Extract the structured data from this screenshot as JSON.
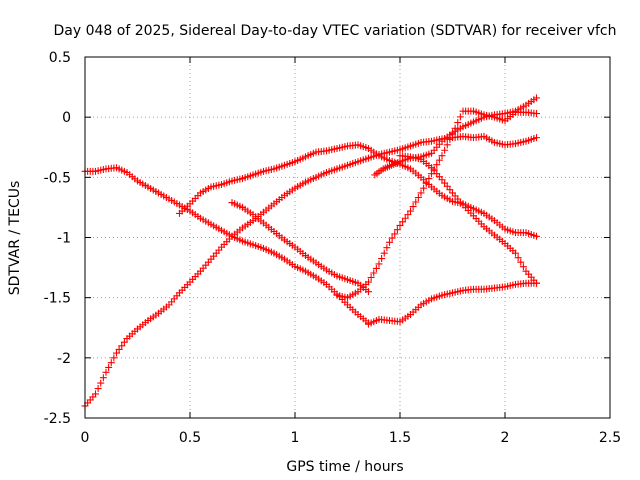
{
  "chart_data": {
    "type": "scatter",
    "title": "Day 048 of 2025, Sidereal Day-to-day VTEC variation (SDTVAR) for receiver vfch",
    "xlabel": "GPS time / hours",
    "ylabel": "SDTVAR / TECUs",
    "xlim": [
      0,
      2.5
    ],
    "ylim": [
      -2.5,
      0.5
    ],
    "xticks": [
      0,
      0.5,
      1,
      1.5,
      2,
      2.5
    ],
    "yticks": [
      -2.5,
      -2,
      -1.5,
      -1,
      -0.5,
      0,
      0.5
    ],
    "xtick_labels": [
      "0",
      "0.5",
      "1",
      "1.5",
      "2",
      "2.5"
    ],
    "ytick_labels": [
      "-2.5",
      "-2",
      "-1.5",
      "-1",
      "-0.5",
      "0",
      "0.5"
    ],
    "grid": true,
    "marker": "+",
    "series": [
      {
        "color": "#ff0000",
        "x": [
          0,
          0.05,
          0.1,
          0.15,
          0.2,
          0.25,
          0.3,
          0.35,
          0.4,
          0.45,
          0.5,
          0.55,
          0.6,
          0.65,
          0.7,
          0.75,
          0.8,
          0.85,
          0.9,
          0.95,
          1.0,
          1.05,
          1.1,
          1.15,
          1.2,
          1.25,
          1.3,
          1.35
        ],
        "y": [
          -0.45,
          -0.45,
          -0.43,
          -0.42,
          -0.46,
          -0.53,
          -0.58,
          -0.63,
          -0.68,
          -0.73,
          -0.78,
          -0.84,
          -0.89,
          -0.94,
          -0.99,
          -1.03,
          -1.06,
          -1.09,
          -1.13,
          -1.18,
          -1.24,
          -1.28,
          -1.33,
          -1.39,
          -1.47,
          -1.56,
          -1.64,
          -1.71
        ]
      },
      {
        "color": "#ff0000",
        "x": [
          1.35,
          1.4,
          1.45,
          1.5,
          1.55,
          1.6,
          1.65,
          1.7,
          1.75,
          1.8,
          1.85,
          1.9,
          1.95,
          2.0,
          2.05,
          2.1,
          2.15
        ],
        "y": [
          -1.72,
          -1.68,
          -1.69,
          -1.7,
          -1.64,
          -1.56,
          -1.51,
          -1.48,
          -1.46,
          -1.44,
          -1.43,
          -1.43,
          -1.42,
          -1.41,
          -1.39,
          -1.38,
          -1.38
        ]
      },
      {
        "color": "#ff0000",
        "x": [
          0,
          0.05,
          0.1,
          0.15,
          0.2,
          0.25,
          0.3,
          0.35,
          0.4,
          0.45,
          0.5,
          0.55,
          0.6,
          0.65,
          0.7,
          0.75,
          0.8,
          0.85,
          0.9,
          0.95,
          1.0,
          1.05,
          1.1,
          1.15,
          1.2
        ],
        "y": [
          -2.4,
          -2.3,
          -2.12,
          -1.96,
          -1.84,
          -1.76,
          -1.69,
          -1.63,
          -1.56,
          -1.46,
          -1.37,
          -1.28,
          -1.18,
          -1.08,
          -0.99,
          -0.92,
          -0.86,
          -0.79,
          -0.72,
          -0.65,
          -0.59,
          -0.54,
          -0.5,
          -0.46,
          -0.43
        ]
      },
      {
        "color": "#ff0000",
        "x": [
          1.2,
          1.25,
          1.3,
          1.35,
          1.4,
          1.45,
          1.5,
          1.55,
          1.6,
          1.65,
          1.7,
          1.75,
          1.8,
          1.85,
          1.9,
          1.95,
          2.0,
          2.05,
          2.1,
          2.15
        ],
        "y": [
          -0.43,
          -0.4,
          -0.37,
          -0.34,
          -0.31,
          -0.29,
          -0.27,
          -0.24,
          -0.21,
          -0.2,
          -0.18,
          -0.17,
          -0.16,
          -0.17,
          -0.16,
          -0.21,
          -0.23,
          -0.22,
          -0.2,
          -0.17
        ]
      },
      {
        "color": "#ff0000",
        "x": [
          0.45,
          0.5,
          0.55,
          0.6,
          0.65,
          0.7,
          0.75,
          0.8,
          0.85,
          0.9,
          0.95,
          1.0,
          1.05,
          1.1,
          1.15,
          1.2,
          1.25,
          1.3,
          1.35,
          1.4,
          1.45,
          1.5,
          1.55,
          1.6,
          1.65,
          1.7,
          1.75,
          1.8,
          1.85,
          1.9,
          1.95,
          2.0,
          2.05,
          2.1,
          2.15
        ],
        "y": [
          -0.8,
          -0.72,
          -0.63,
          -0.58,
          -0.56,
          -0.53,
          -0.51,
          -0.48,
          -0.45,
          -0.43,
          -0.4,
          -0.37,
          -0.33,
          -0.29,
          -0.28,
          -0.26,
          -0.24,
          -0.23,
          -0.26,
          -0.32,
          -0.36,
          -0.39,
          -0.43,
          -0.5,
          -0.58,
          -0.65,
          -0.7,
          -0.72,
          -0.76,
          -0.8,
          -0.86,
          -0.93,
          -0.96,
          -0.96,
          -0.99
        ]
      },
      {
        "color": "#ff0000",
        "x": [
          0.7,
          0.75,
          0.8,
          0.85,
          0.9,
          0.95,
          1.0,
          1.05,
          1.1,
          1.15,
          1.2,
          1.25,
          1.3,
          1.35
        ],
        "y": [
          -0.71,
          -0.75,
          -0.81,
          -0.88,
          -0.95,
          -1.02,
          -1.08,
          -1.15,
          -1.21,
          -1.27,
          -1.32,
          -1.35,
          -1.38,
          -1.45
        ]
      },
      {
        "color": "#ff0000",
        "x": [
          1.2,
          1.25,
          1.3,
          1.35,
          1.4,
          1.45,
          1.5,
          1.55,
          1.6,
          1.65,
          1.7,
          1.75,
          1.8,
          1.85,
          1.9,
          1.95,
          2.0,
          2.05,
          2.1,
          2.15
        ],
        "y": [
          -1.48,
          -1.5,
          -1.45,
          -1.37,
          -1.22,
          -1.04,
          -0.9,
          -0.78,
          -0.63,
          -0.47,
          -0.32,
          -0.14,
          0.05,
          0.05,
          0.02,
          0.0,
          -0.03,
          0.04,
          0.04,
          0.03
        ]
      },
      {
        "color": "#ff0000",
        "x": [
          1.38,
          1.42,
          1.46,
          1.5,
          1.55,
          1.6,
          1.65,
          1.7,
          1.75,
          1.8,
          1.85,
          1.9,
          1.95,
          2.0,
          2.05,
          2.1,
          2.15
        ],
        "y": [
          -0.48,
          -0.43,
          -0.4,
          -0.37,
          -0.34,
          -0.33,
          -0.3,
          -0.2,
          -0.13,
          -0.08,
          -0.04,
          0.0,
          0.02,
          0.03,
          0.05,
          0.1,
          0.16
        ]
      },
      {
        "color": "#ff0000",
        "x": [
          1.5,
          1.55,
          1.6,
          1.65,
          1.7,
          1.75,
          1.8,
          1.85,
          1.9,
          1.95,
          2.0,
          2.05,
          2.1,
          2.15
        ],
        "y": [
          -0.32,
          -0.33,
          -0.35,
          -0.42,
          -0.52,
          -0.63,
          -0.73,
          -0.82,
          -0.91,
          -0.98,
          -1.05,
          -1.13,
          -1.28,
          -1.38
        ]
      }
    ]
  }
}
